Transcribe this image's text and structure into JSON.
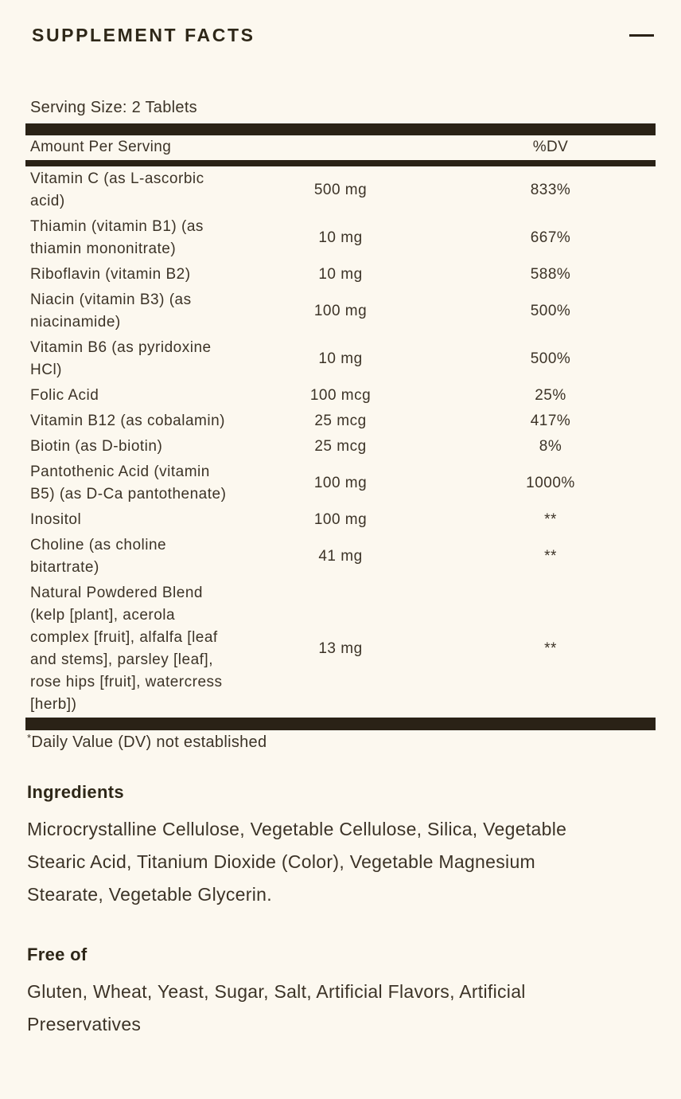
{
  "panel": {
    "title": "SUPPLEMENT FACTS",
    "collapse_icon": "minus-icon",
    "serving_size": "Serving Size: 2 Tablets",
    "table": {
      "header": {
        "amount": "Amount Per Serving",
        "dv": "%DV"
      },
      "rows": [
        {
          "label": "Vitamin C (as L-ascorbic acid)",
          "amount": "500 mg",
          "dv": "833%"
        },
        {
          "label": "Thiamin (vitamin B1) (as thiamin mononitrate)",
          "amount": "10 mg",
          "dv": "667%"
        },
        {
          "label": "Riboflavin (vitamin B2)",
          "amount": "10 mg",
          "dv": "588%"
        },
        {
          "label": "Niacin (vitamin B3) (as niacinamide)",
          "amount": "100 mg",
          "dv": "500%"
        },
        {
          "label": "Vitamin B6 (as pyridoxine HCl)",
          "amount": "10 mg",
          "dv": "500%"
        },
        {
          "label": "Folic Acid",
          "amount": "100 mcg",
          "dv": "25%"
        },
        {
          "label": "Vitamin B12 (as cobalamin)",
          "amount": "25 mcg",
          "dv": "417%"
        },
        {
          "label": "Biotin (as D-biotin)",
          "amount": "25 mcg",
          "dv": "8%"
        },
        {
          "label": "Pantothenic Acid (vitamin B5) (as D-Ca pantothenate)",
          "amount": "100 mg",
          "dv": "1000%"
        },
        {
          "label": "Inositol",
          "amount": "100 mg",
          "dv": "**"
        },
        {
          "label": "Choline (as choline bitartrate)",
          "amount": "41 mg",
          "dv": "**"
        },
        {
          "label": "Natural Powdered Blend (kelp [plant], acerola complex [fruit], alfalfa [leaf and stems], parsley [leaf], rose hips [fruit], watercress [herb])",
          "amount": "13 mg",
          "dv": "**"
        }
      ],
      "footnote_marker": "*",
      "footnote_text": "Daily Value (DV) not established"
    },
    "ingredients": {
      "heading": "Ingredients",
      "text": "Microcrystalline Cellulose, Vegetable Cellulose, Silica, Vegetable Stearic Acid, Titanium Dioxide (Color), Vegetable Magnesium Stearate, Vegetable Glycerin."
    },
    "free_of": {
      "heading": "Free of",
      "text": "Gluten, Wheat, Yeast, Sugar, Salt, Artificial Flavors, Artificial Preservatives"
    },
    "colors": {
      "background": "#fcf8ef",
      "bar": "#2a2216",
      "heading": "#2e2718",
      "text": "#3c3327"
    }
  }
}
